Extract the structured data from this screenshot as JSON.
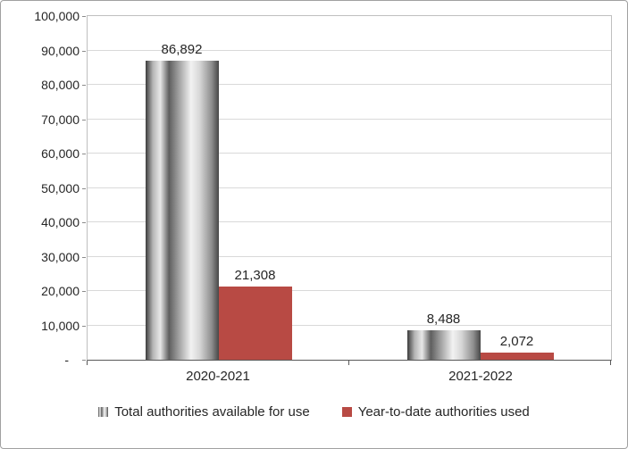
{
  "chart_data": {
    "type": "bar",
    "title": "",
    "categories": [
      "2020-2021",
      "2021-2022"
    ],
    "series": [
      {
        "name": "Total authorities available for use",
        "values": [
          86892,
          8488
        ],
        "labels": [
          "86,892",
          "8,488"
        ],
        "fill": "fill-gray-gradient"
      },
      {
        "name": "Year-to-date authorities used",
        "values": [
          21308,
          2072
        ],
        "labels": [
          "21,308",
          "2,072"
        ],
        "fill": "#b84a44"
      }
    ],
    "xlabel": "",
    "ylabel": "",
    "ylim": [
      0,
      100000
    ],
    "ytick_interval": 10000,
    "ytick_labels": [
      "-",
      "10,000",
      "20,000",
      "30,000",
      "40,000",
      "50,000",
      "60,000",
      "70,000",
      "80,000",
      "90,000",
      "100,000"
    ],
    "grid": true,
    "legend_position": "bottom"
  }
}
